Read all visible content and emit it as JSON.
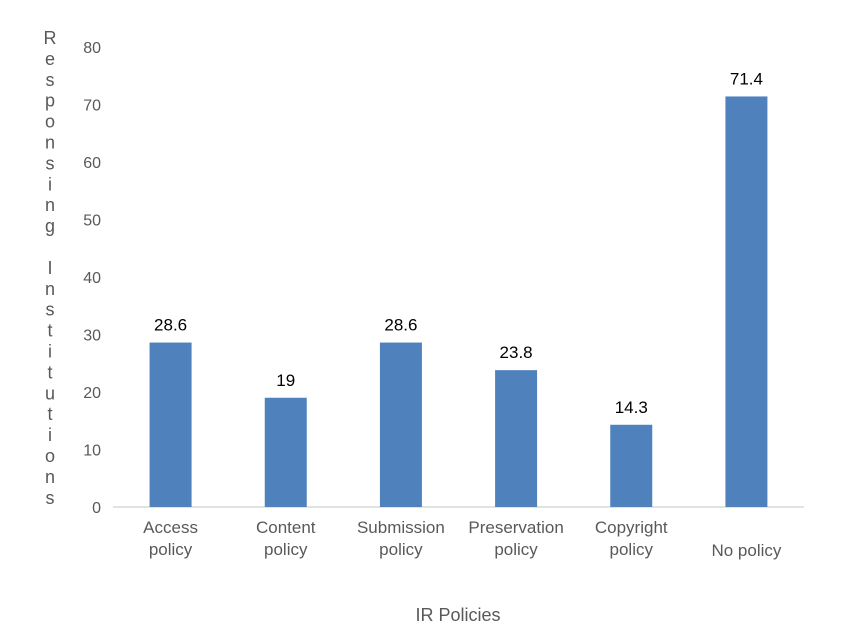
{
  "chart_data": {
    "type": "bar",
    "categories": [
      [
        "Access",
        "policy"
      ],
      [
        "Content",
        "policy"
      ],
      [
        "Submission",
        "policy"
      ],
      [
        "Preservation",
        "policy"
      ],
      [
        "Copyright",
        "policy"
      ],
      [
        "No policy"
      ]
    ],
    "values": [
      28.6,
      19,
      28.6,
      23.8,
      14.3,
      71.4
    ],
    "data_labels": [
      "28.6",
      "19",
      "28.6",
      "23.8",
      "14.3",
      "71.4"
    ],
    "xlabel": "IR Policies",
    "ylabel": "Responsing Institutions",
    "ylim": [
      0,
      80
    ],
    "yticks": [
      0,
      10,
      20,
      30,
      40,
      50,
      60,
      70,
      80
    ],
    "grid": false,
    "legend": "none",
    "bar_color": "#4f81bd",
    "axis_color": "#d9d9d9"
  }
}
